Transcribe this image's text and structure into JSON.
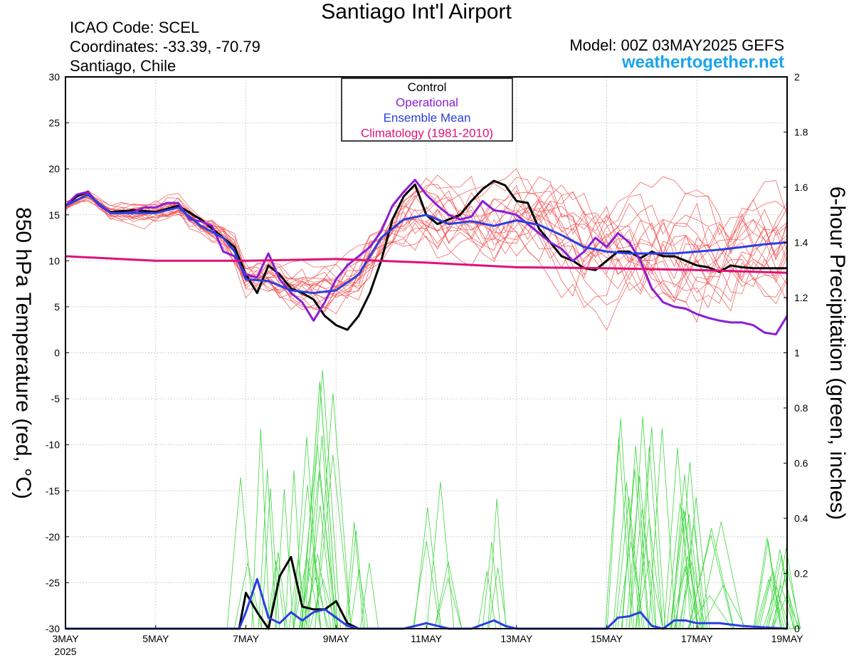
{
  "header": {
    "title": "Santiago Int'l Airport",
    "icao": "ICAO Code: SCEL",
    "coordinates": "Coordinates: -33.39, -70.79",
    "location": "Santiago, Chile",
    "model": "Model: 00Z 03MAY2025 GEFS",
    "site": "weathertogether.net"
  },
  "chart_data": {
    "type": "line",
    "title": "Santiago Int'l Airport",
    "xlabel": "",
    "ylabel": "850 hPa Temperature (red, °C)",
    "ylabel_right": "6-hour Precipitation (green, inches)",
    "x_unit": "days since 3MAY 2025 00Z",
    "xlim": [
      0,
      16
    ],
    "ylim": [
      -30,
      30
    ],
    "ylim_right": [
      0,
      2
    ],
    "x_ticks": [
      {
        "x": 0,
        "label": "3MAY",
        "sub": "2025"
      },
      {
        "x": 2,
        "label": "5MAY"
      },
      {
        "x": 4,
        "label": "7MAY"
      },
      {
        "x": 6,
        "label": "9MAY"
      },
      {
        "x": 8,
        "label": "11MAY"
      },
      {
        "x": 10,
        "label": "13MAY"
      },
      {
        "x": 12,
        "label": "15MAY"
      },
      {
        "x": 14,
        "label": "17MAY"
      },
      {
        "x": 16,
        "label": "19MAY"
      }
    ],
    "y_ticks_left": [
      -30,
      -25,
      -20,
      -15,
      -10,
      -5,
      0,
      5,
      10,
      15,
      20,
      25,
      30
    ],
    "y_ticks_right": [
      "0",
      "0.2",
      "0.4",
      "0.6",
      "0.8",
      "1",
      "1.2",
      "1.4",
      "1.6",
      "1.8",
      "2"
    ],
    "grid": true,
    "legend": {
      "placement": "top-center",
      "entries": [
        {
          "label": "Control",
          "color": "#000000"
        },
        {
          "label": "Operational",
          "color": "#8a1ed6"
        },
        {
          "label": "Ensemble Mean",
          "color": "#2a3fe0"
        },
        {
          "label": "Climatology (1981-2010)",
          "color": "#e0107a"
        }
      ]
    },
    "temperature_series": [
      {
        "name": "Control",
        "color": "#000000",
        "x": [
          0,
          0.25,
          0.5,
          0.75,
          1,
          1.5,
          2,
          2.5,
          3,
          3.5,
          3.75,
          4,
          4.25,
          4.5,
          4.75,
          5,
          5.25,
          5.5,
          5.75,
          6,
          6.25,
          6.5,
          6.75,
          7,
          7.25,
          7.5,
          7.75,
          8,
          8.25,
          8.5,
          8.75,
          9,
          9.25,
          9.5,
          9.75,
          10,
          10.25,
          10.5,
          10.75,
          11,
          11.25,
          11.5,
          11.75,
          12,
          12.25,
          12.5,
          12.75,
          13,
          13.25,
          13.5,
          13.75,
          14,
          14.25,
          14.5,
          14.75,
          15,
          15.25,
          15.5,
          15.75,
          16
        ],
        "y": [
          16,
          17,
          17.5,
          16,
          15.3,
          15.5,
          15.3,
          16,
          14.5,
          12.5,
          11.5,
          8.5,
          6.5,
          9.5,
          8.5,
          7,
          6.5,
          5.8,
          4,
          3,
          2.5,
          4,
          6.5,
          10,
          14.5,
          17,
          18.3,
          15,
          14,
          14.5,
          15,
          16.5,
          17.8,
          18.7,
          18.2,
          16.5,
          16.3,
          13.5,
          12,
          10.5,
          10,
          9.2,
          9,
          10,
          11,
          11,
          10.3,
          11,
          10.5,
          10.5,
          10,
          9.5,
          9.3,
          8.8,
          9.5,
          9.3,
          9.2,
          9.2,
          9.2,
          9.2
        ]
      },
      {
        "name": "Operational",
        "color": "#8a1ed6",
        "x": [
          0,
          0.25,
          0.5,
          0.75,
          1,
          1.25,
          1.5,
          1.75,
          2,
          2.25,
          2.5,
          2.75,
          3,
          3.25,
          3.5,
          3.75,
          4,
          4.25,
          4.5,
          4.75,
          5,
          5.25,
          5.5,
          5.75,
          6,
          6.25,
          6.5,
          6.75,
          7,
          7.25,
          7.5,
          7.75,
          8,
          8.25,
          8.5,
          8.75,
          9,
          9.25,
          9.5,
          9.75,
          10,
          10.25,
          10.5,
          10.75,
          11,
          11.25,
          11.5,
          11.75,
          12,
          12.25,
          12.5,
          12.75,
          13,
          13.25,
          13.5,
          13.75,
          14,
          14.25,
          14.5,
          14.75,
          15,
          15.25,
          15.5,
          15.75,
          16
        ],
        "y": [
          16,
          17.2,
          17.5,
          16,
          15.2,
          15.2,
          15.3,
          15.8,
          15.8,
          16.3,
          16.3,
          14.5,
          14.3,
          13.8,
          11,
          10.5,
          8.5,
          8.2,
          10.8,
          8,
          6.5,
          5.5,
          3.5,
          5.5,
          8,
          9.5,
          10.5,
          11.5,
          13.2,
          16,
          17.5,
          18.8,
          17.2,
          16,
          15,
          14.5,
          14.8,
          16.5,
          15.5,
          15.3,
          15,
          14,
          13,
          12,
          11.3,
          10,
          11,
          12.5,
          11.5,
          13,
          12,
          10,
          7,
          5.5,
          5,
          4.8,
          4.2,
          3.8,
          3.5,
          3.3,
          3.3,
          3,
          2.2,
          2,
          4
        ]
      },
      {
        "name": "Ensemble Mean",
        "color": "#2a3fe0",
        "x": [
          0,
          0.5,
          1,
          1.5,
          2,
          2.5,
          3,
          3.5,
          3.75,
          4,
          4.5,
          5,
          5.5,
          6,
          6.5,
          7,
          7.5,
          8,
          8.5,
          9,
          9.5,
          10,
          10.5,
          11,
          11.5,
          12,
          12.5,
          13,
          13.5,
          14,
          14.5,
          15,
          15.5,
          16
        ],
        "y": [
          16,
          17.2,
          15.2,
          15.2,
          15.2,
          15.8,
          13.8,
          12.5,
          11,
          8,
          7.8,
          6.8,
          6.5,
          6.8,
          8.5,
          12.5,
          14.5,
          15,
          14,
          14.3,
          13.8,
          14.4,
          13.9,
          12.8,
          11.5,
          11,
          10.8,
          10.8,
          10.8,
          11,
          11.2,
          11.5,
          11.8,
          12
        ]
      },
      {
        "name": "Climatology (1981-2010)",
        "color": "#e0107a",
        "x": [
          0,
          2,
          4,
          6,
          8,
          10,
          12,
          14,
          16
        ],
        "y": [
          10.5,
          10.0,
          10.0,
          10.2,
          9.8,
          9.3,
          9.2,
          9.0,
          8.7
        ]
      }
    ],
    "precip_series": [
      {
        "name": "Control",
        "color": "#000000",
        "x": [
          0,
          3.85,
          4,
          4.25,
          4.5,
          4.75,
          5,
          5.25,
          5.5,
          5.75,
          6,
          6.25,
          6.5
        ],
        "y": [
          0,
          0,
          0.13,
          0.06,
          0,
          0.19,
          0.26,
          0.08,
          0.07,
          0.07,
          0.1,
          0.02,
          0
        ]
      },
      {
        "name": "Ensemble Mean",
        "color": "#2a3fe0",
        "x": [
          0,
          3.85,
          4,
          4.25,
          4.5,
          4.75,
          5,
          5.25,
          5.5,
          5.75,
          6,
          6.25,
          6.5,
          7,
          7.5,
          8,
          8.25,
          8.5,
          9,
          9.5,
          9.75,
          10,
          11,
          12,
          12.25,
          12.5,
          12.75,
          13,
          13.25,
          13.5,
          13.75,
          14,
          14.5,
          15,
          15.5,
          16
        ],
        "y": [
          0,
          0,
          0.06,
          0.18,
          0.04,
          0.02,
          0.06,
          0.03,
          0.06,
          0.07,
          0.04,
          0.01,
          0,
          0,
          0,
          0.02,
          0.01,
          0,
          0,
          0.03,
          0.01,
          0,
          0,
          0,
          0.04,
          0.045,
          0.06,
          0.01,
          0,
          0.03,
          0.03,
          0.02,
          0.02,
          0.01,
          0.005,
          0
        ]
      }
    ]
  }
}
